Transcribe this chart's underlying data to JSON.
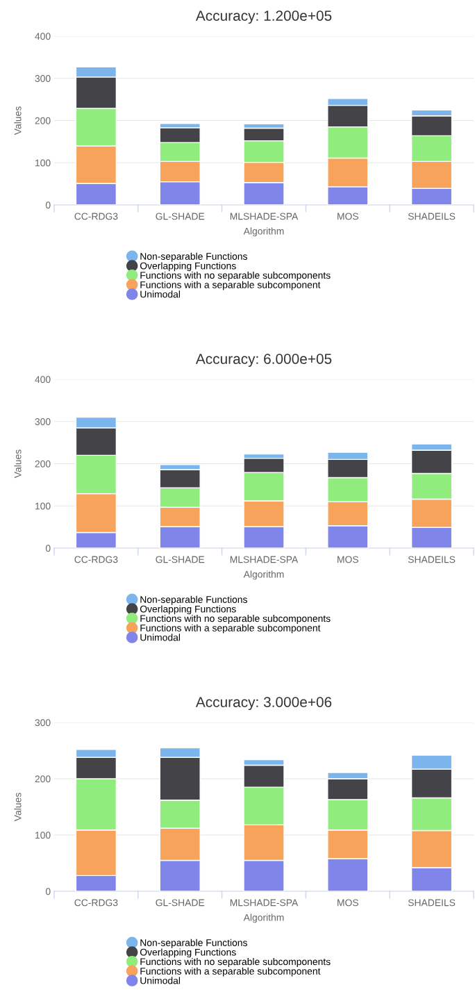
{
  "chart_data": [
    {
      "type": "bar",
      "title": "Accuracy: 1.200e+05",
      "xlabel": "Algorithm",
      "ylabel": "Values",
      "stacked": true,
      "grid": "y",
      "legend": "bottom",
      "categories": [
        "CC-RDG3",
        "GL-SHADE",
        "MLSHADE-SPA",
        "MOS",
        "SHADEILS"
      ],
      "ylim": [
        0,
        400
      ],
      "yticks": [
        0,
        100,
        200,
        300,
        400
      ],
      "series": [
        {
          "name": "Unimodal",
          "color": "#8085e9",
          "values": [
            51,
            55,
            53,
            43,
            39
          ]
        },
        {
          "name": "Functions with a separable subcomponent",
          "color": "#f7a35c",
          "values": [
            89,
            48,
            48,
            68,
            64
          ]
        },
        {
          "name": "Functions with no separable subcomponents",
          "color": "#90ed7d",
          "values": [
            89,
            45,
            51,
            74,
            61
          ]
        },
        {
          "name": "Overlapping Functions",
          "color": "#434348",
          "values": [
            74,
            35,
            30,
            51,
            47
          ]
        },
        {
          "name": "Non-separable Functions",
          "color": "#7cb5ec",
          "values": [
            24,
            10,
            10,
            16,
            14
          ]
        }
      ]
    },
    {
      "type": "bar",
      "title": "Accuracy: 6.000e+05",
      "xlabel": "Algorithm",
      "ylabel": "Values",
      "stacked": true,
      "grid": "y",
      "legend": "bottom",
      "categories": [
        "CC-RDG3",
        "GL-SHADE",
        "MLSHADE-SPA",
        "MOS",
        "SHADEILS"
      ],
      "ylim": [
        0,
        400
      ],
      "yticks": [
        0,
        100,
        200,
        300,
        400
      ],
      "series": [
        {
          "name": "Unimodal",
          "color": "#8085e9",
          "values": [
            37,
            51,
            51,
            53,
            49
          ]
        },
        {
          "name": "Functions with a separable subcomponent",
          "color": "#f7a35c",
          "values": [
            92,
            46,
            61,
            57,
            67
          ]
        },
        {
          "name": "Functions with no separable subcomponents",
          "color": "#90ed7d",
          "values": [
            91,
            46,
            67,
            57,
            61
          ]
        },
        {
          "name": "Overlapping Functions",
          "color": "#434348",
          "values": [
            65,
            43,
            34,
            43,
            55
          ]
        },
        {
          "name": "Non-separable Functions",
          "color": "#7cb5ec",
          "values": [
            25,
            12,
            10,
            17,
            15
          ]
        }
      ]
    },
    {
      "type": "bar",
      "title": "Accuracy: 3.000e+06",
      "xlabel": "Algorithm",
      "ylabel": "Values",
      "stacked": true,
      "grid": "y",
      "legend": "bottom",
      "categories": [
        "CC-RDG3",
        "GL-SHADE",
        "MLSHADE-SPA",
        "MOS",
        "SHADEILS"
      ],
      "ylim": [
        0,
        300
      ],
      "yticks": [
        0,
        100,
        200,
        300
      ],
      "series": [
        {
          "name": "Unimodal",
          "color": "#8085e9",
          "values": [
            28,
            55,
            55,
            58,
            42
          ]
        },
        {
          "name": "Functions with a separable subcomponent",
          "color": "#f7a35c",
          "values": [
            81,
            57,
            63,
            51,
            66
          ]
        },
        {
          "name": "Functions with no separable subcomponents",
          "color": "#90ed7d",
          "values": [
            91,
            50,
            67,
            54,
            58
          ]
        },
        {
          "name": "Overlapping Functions",
          "color": "#434348",
          "values": [
            38,
            76,
            39,
            37,
            51
          ]
        },
        {
          "name": "Non-separable Functions",
          "color": "#7cb5ec",
          "values": [
            14,
            17,
            10,
            11,
            25
          ]
        }
      ]
    }
  ]
}
